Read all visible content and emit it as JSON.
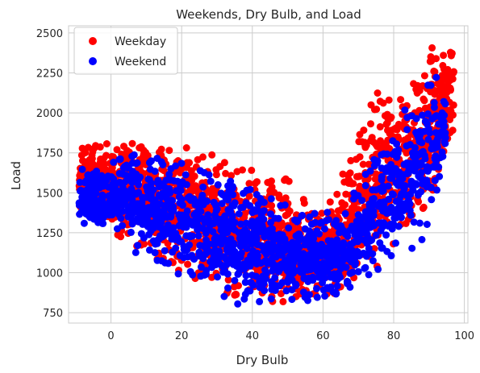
{
  "chart_data": {
    "type": "scatter",
    "title": "Weekends, Dry Bulb, and Load",
    "xlabel": "Dry Bulb",
    "ylabel": "Load",
    "xlim": [
      -12,
      101
    ],
    "ylim": [
      685,
      2545
    ],
    "xticks": [
      0,
      20,
      40,
      60,
      80,
      100
    ],
    "yticks": [
      750,
      1000,
      1250,
      1500,
      1750,
      2000,
      2250,
      2500
    ],
    "grid": true,
    "legend_placement": "top-left",
    "series": [
      {
        "name": "Weekday",
        "color": "#ff0000",
        "envelope": [
          [
            -9,
            1400,
            1790
          ],
          [
            -5,
            1330,
            1790
          ],
          [
            0,
            1250,
            1830
          ],
          [
            4,
            1190,
            1900
          ],
          [
            8,
            1150,
            1810
          ],
          [
            12,
            1090,
            1820
          ],
          [
            16,
            1060,
            1820
          ],
          [
            20,
            1000,
            1840
          ],
          [
            24,
            960,
            1810
          ],
          [
            28,
            900,
            1790
          ],
          [
            32,
            850,
            1760
          ],
          [
            36,
            830,
            1730
          ],
          [
            40,
            810,
            1660
          ],
          [
            44,
            800,
            1620
          ],
          [
            48,
            800,
            1620
          ],
          [
            52,
            800,
            1560
          ],
          [
            56,
            800,
            1460
          ],
          [
            60,
            810,
            1460
          ],
          [
            64,
            850,
            1520
          ],
          [
            68,
            900,
            1800
          ],
          [
            72,
            980,
            2000
          ],
          [
            76,
            1030,
            2150
          ],
          [
            80,
            1150,
            2200
          ],
          [
            84,
            1200,
            2260
          ],
          [
            88,
            1300,
            2350
          ],
          [
            92,
            1550,
            2430
          ],
          [
            96,
            1800,
            2440
          ],
          [
            97,
            1900,
            2430
          ]
        ],
        "count": 1800
      },
      {
        "name": "Weekend",
        "color": "#0000ff",
        "envelope": [
          [
            -9,
            1300,
            1650
          ],
          [
            -5,
            1240,
            1680
          ],
          [
            0,
            1200,
            1720
          ],
          [
            4,
            1170,
            1780
          ],
          [
            8,
            1100,
            1730
          ],
          [
            12,
            1050,
            1720
          ],
          [
            16,
            1000,
            1720
          ],
          [
            20,
            960,
            1700
          ],
          [
            24,
            920,
            1680
          ],
          [
            28,
            880,
            1640
          ],
          [
            32,
            830,
            1600
          ],
          [
            36,
            800,
            1560
          ],
          [
            40,
            790,
            1520
          ],
          [
            44,
            790,
            1480
          ],
          [
            48,
            790,
            1440
          ],
          [
            52,
            790,
            1420
          ],
          [
            56,
            800,
            1380
          ],
          [
            60,
            820,
            1380
          ],
          [
            64,
            840,
            1420
          ],
          [
            68,
            870,
            1500
          ],
          [
            72,
            920,
            1620
          ],
          [
            76,
            970,
            1800
          ],
          [
            80,
            1020,
            1960
          ],
          [
            84,
            1120,
            2080
          ],
          [
            88,
            1200,
            2150
          ],
          [
            92,
            1420,
            2250
          ],
          [
            95,
            1650,
            2200
          ]
        ],
        "count": 1400
      }
    ]
  }
}
